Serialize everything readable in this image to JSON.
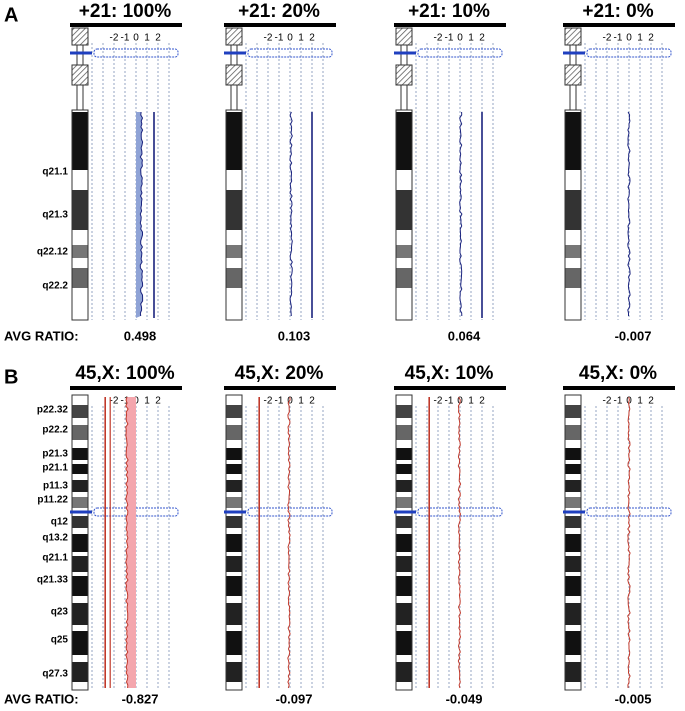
{
  "panels": [
    {
      "label": "A",
      "avg_label": "AVG RATIO:",
      "band_labels": [
        "q21.1",
        "q21.3",
        "q22.12",
        "q22.2"
      ],
      "subpanels": [
        {
          "title": "+21: 100%",
          "avg": "0.498"
        },
        {
          "title": "+21: 20%",
          "avg": "0.103"
        },
        {
          "title": "+21: 10%",
          "avg": "0.064"
        },
        {
          "title": "+21: 0%",
          "avg": "-0.007"
        }
      ]
    },
    {
      "label": "B",
      "avg_label": "AVG RATIO:",
      "band_labels": [
        "p22.32",
        "p22.2",
        "p21.3",
        "p21.1",
        "p11.3",
        "p11.22",
        "q12",
        "q13.2",
        "q21.1",
        "q21.33",
        "q23",
        "q25",
        "q27.3"
      ],
      "subpanels": [
        {
          "title": "45,X: 100%",
          "avg": "-0.827"
        },
        {
          "title": "45,X: 20%",
          "avg": "-0.097"
        },
        {
          "title": "45,X: 10%",
          "avg": "-0.049"
        },
        {
          "title": "45,X: 0%",
          "avg": "-0.005"
        }
      ]
    }
  ],
  "axis_ticks": [
    "-2",
    "-1",
    "0",
    "1",
    "2"
  ]
}
